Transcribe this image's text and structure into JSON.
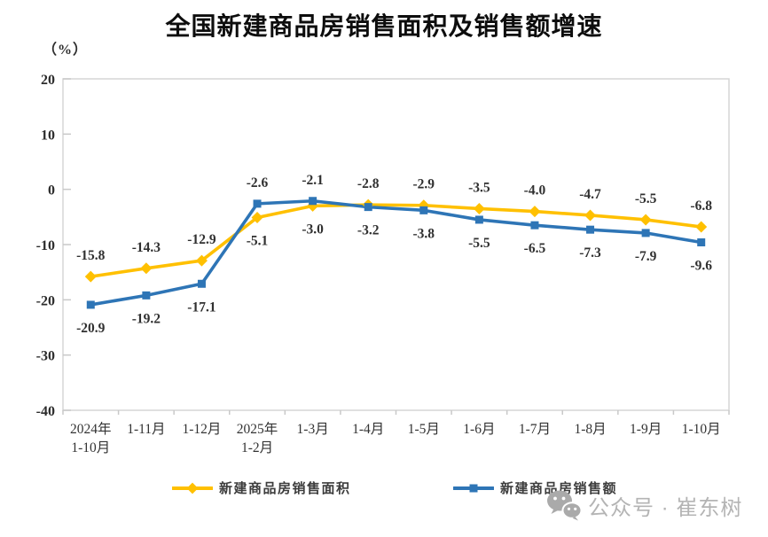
{
  "watermark": {
    "text": "公众号 · 崔东树"
  },
  "chart_data": {
    "type": "line",
    "title": "全国新建商品房销售面积及销售额增速",
    "unit_label": "（%）",
    "xlabel": "",
    "ylabel": "",
    "ylim": [
      -40,
      20
    ],
    "ytick_step": 10,
    "grid": false,
    "legend_position": "bottom",
    "categories": [
      [
        "2024年",
        "1-10月"
      ],
      [
        "1-11月"
      ],
      [
        "1-12月"
      ],
      [
        "2025年",
        "1-2月"
      ],
      [
        "1-3月"
      ],
      [
        "1-4月"
      ],
      [
        "1-5月"
      ],
      [
        "1-6月"
      ],
      [
        "1-7月"
      ],
      [
        "1-8月"
      ],
      [
        "1-9月"
      ],
      [
        "1-10月"
      ]
    ],
    "series": [
      {
        "name": "新建商品房销售面积",
        "marker": "diamond",
        "color": "#FFC000",
        "values": [
          -15.8,
          -14.3,
          -12.9,
          -5.1,
          -3.0,
          -2.8,
          -2.9,
          -3.5,
          -4.0,
          -4.7,
          -5.5,
          -6.8
        ]
      },
      {
        "name": "新建商品房销售额",
        "marker": "square",
        "color": "#2E75B6",
        "values": [
          -20.9,
          -19.2,
          -17.1,
          -2.6,
          -2.1,
          -3.2,
          -3.8,
          -5.5,
          -6.5,
          -7.3,
          -7.9,
          -9.6
        ]
      }
    ]
  }
}
